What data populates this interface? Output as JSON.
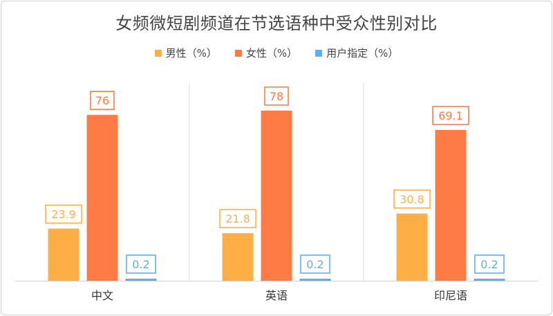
{
  "chart_data": {
    "type": "bar",
    "title": "女频微短剧频道在节选语种中受众性别对比",
    "categories": [
      "中文",
      "英语",
      "印尼语"
    ],
    "series": [
      {
        "name": "男性（%）",
        "color": "#FFAE45",
        "values": [
          23.9,
          21.8,
          30.8
        ]
      },
      {
        "name": "女性（%）",
        "color": "#FF7B46",
        "values": [
          76,
          78,
          69.1
        ]
      },
      {
        "name": "用户指定（%）",
        "color": "#5BB1EE",
        "values": [
          0.2,
          0.2,
          0.2
        ]
      }
    ],
    "ylim": [
      0,
      100
    ],
    "grid": false,
    "legend_position": "top",
    "data_labels": true
  }
}
